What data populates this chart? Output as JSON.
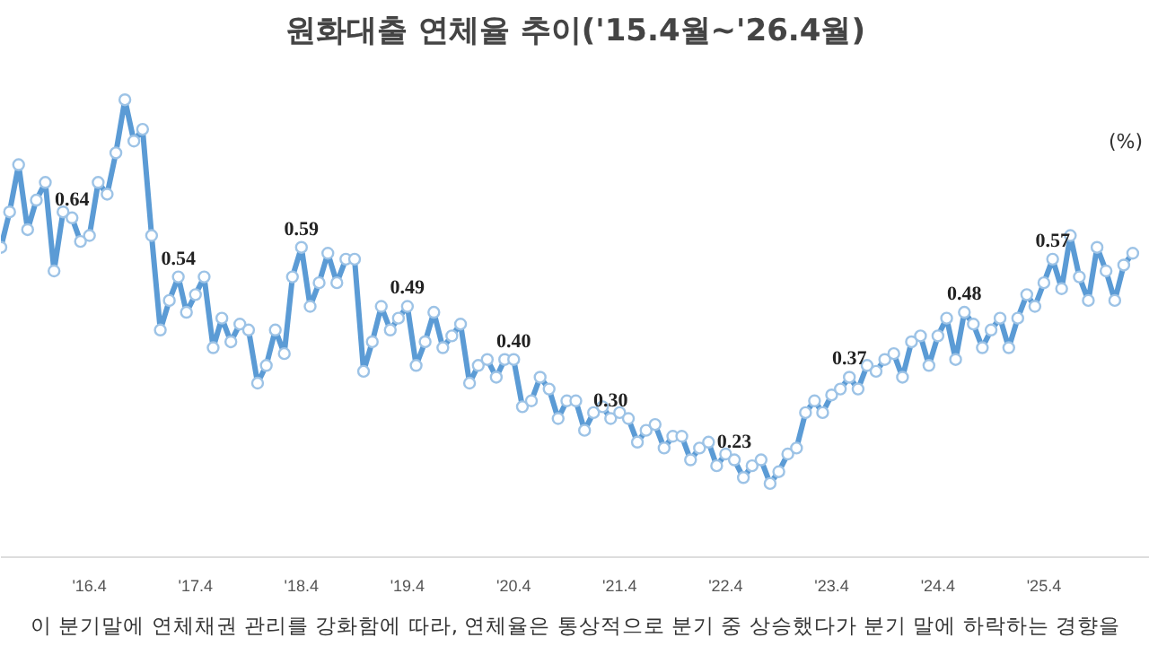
{
  "chart_data": {
    "type": "line",
    "title": "원화대출 연체율 추이('15.4월~'26.4월)",
    "ylabel": "(%)",
    "annotations": [
      "이 분기말에 연체채권 관리를 강화함에 따라, 연체율은 통상적으로 분기 중 상승했다가 분기 말에 하락하는 경향을"
    ],
    "x": [
      "2015-06",
      "2015-07",
      "2015-08",
      "2015-09",
      "2015-10",
      "2015-11",
      "2015-12",
      "2016-01",
      "2016-02",
      "2016-03",
      "2016-04",
      "2016-05",
      "2016-06",
      "2016-07",
      "2016-08",
      "2016-09",
      "2016-10",
      "2016-11",
      "2016-12",
      "2017-01",
      "2017-02",
      "2017-03",
      "2017-04",
      "2017-05",
      "2017-06",
      "2017-07",
      "2017-08",
      "2017-09",
      "2017-10",
      "2017-11",
      "2017-12",
      "2018-01",
      "2018-02",
      "2018-03",
      "2018-04",
      "2018-05",
      "2018-06",
      "2018-07",
      "2018-08",
      "2018-09",
      "2018-10",
      "2018-11",
      "2018-12",
      "2019-01",
      "2019-02",
      "2019-03",
      "2019-04",
      "2019-05",
      "2019-06",
      "2019-07",
      "2019-08",
      "2019-09",
      "2019-10",
      "2019-11",
      "2019-12",
      "2020-01",
      "2020-02",
      "2020-03",
      "2020-04",
      "2020-05",
      "2020-06",
      "2020-07",
      "2020-08",
      "2020-09",
      "2020-10",
      "2020-11",
      "2020-12",
      "2021-01",
      "2021-02",
      "2021-03",
      "2021-04",
      "2021-05",
      "2021-06",
      "2021-07",
      "2021-08",
      "2021-09",
      "2021-10",
      "2021-11",
      "2021-12",
      "2022-01",
      "2022-02",
      "2022-03",
      "2022-04",
      "2022-05",
      "2022-06",
      "2022-07",
      "2022-08",
      "2022-09",
      "2022-10",
      "2022-11",
      "2022-12",
      "2023-01",
      "2023-02",
      "2023-03",
      "2023-04",
      "2023-05",
      "2023-06",
      "2023-07",
      "2023-08",
      "2023-09",
      "2023-10",
      "2023-11",
      "2023-12",
      "2024-01",
      "2024-02",
      "2024-03",
      "2024-04",
      "2024-05",
      "2024-06",
      "2024-07",
      "2024-08",
      "2024-09",
      "2024-10",
      "2024-11",
      "2024-12",
      "2025-01",
      "2025-02",
      "2025-03",
      "2025-04",
      "2025-05",
      "2025-06",
      "2025-07",
      "2025-08",
      "2025-09",
      "2025-10",
      "2025-11",
      "2025-12",
      "2026-01",
      "2026-02"
    ],
    "series": [
      {
        "color": "#5b9bd5",
        "values": [
          0.59,
          0.65,
          0.73,
          0.62,
          0.67,
          0.7,
          0.55,
          0.65,
          0.64,
          0.6,
          0.61,
          0.7,
          0.68,
          0.75,
          0.84,
          0.77,
          0.79,
          0.61,
          0.45,
          0.5,
          0.54,
          0.48,
          0.51,
          0.54,
          0.42,
          0.47,
          0.43,
          0.46,
          0.45,
          0.36,
          0.39,
          0.45,
          0.41,
          0.54,
          0.59,
          0.49,
          0.53,
          0.58,
          0.53,
          0.57,
          0.57,
          0.38,
          0.43,
          0.49,
          0.45,
          0.47,
          0.49,
          0.39,
          0.43,
          0.48,
          0.42,
          0.44,
          0.46,
          0.36,
          0.39,
          0.4,
          0.37,
          0.4,
          0.4,
          0.32,
          0.33,
          0.37,
          0.35,
          0.3,
          0.33,
          0.33,
          0.28,
          0.31,
          0.32,
          0.3,
          0.31,
          0.3,
          0.26,
          0.28,
          0.29,
          0.25,
          0.27,
          0.27,
          0.23,
          0.25,
          0.26,
          0.22,
          0.24,
          0.23,
          0.2,
          0.22,
          0.23,
          0.19,
          0.21,
          0.24,
          0.25,
          0.31,
          0.33,
          0.31,
          0.34,
          0.35,
          0.37,
          0.35,
          0.39,
          0.38,
          0.4,
          0.41,
          0.37,
          0.43,
          0.44,
          0.39,
          0.44,
          0.47,
          0.4,
          0.48,
          0.46,
          0.42,
          0.45,
          0.47,
          0.42,
          0.47,
          0.51,
          0.49,
          0.53,
          0.57,
          0.52,
          0.61,
          0.54,
          0.5,
          0.59,
          0.55,
          0.5,
          0.56,
          0.58
        ],
        "value_labels": [
          null,
          null,
          null,
          null,
          null,
          null,
          null,
          null,
          "0.64",
          null,
          null,
          null,
          null,
          null,
          null,
          null,
          null,
          null,
          null,
          null,
          "0.54",
          null,
          null,
          null,
          null,
          null,
          null,
          null,
          null,
          null,
          null,
          null,
          null,
          null,
          "0.59",
          null,
          null,
          null,
          null,
          null,
          null,
          null,
          null,
          null,
          null,
          null,
          "0.49",
          null,
          null,
          null,
          null,
          null,
          null,
          null,
          null,
          null,
          null,
          null,
          "0.40",
          null,
          null,
          null,
          null,
          null,
          null,
          null,
          null,
          null,
          null,
          "0.30",
          null,
          null,
          null,
          null,
          null,
          null,
          null,
          null,
          null,
          null,
          null,
          null,
          null,
          "0.23",
          null,
          null,
          null,
          null,
          null,
          null,
          null,
          null,
          null,
          null,
          null,
          null,
          "0.37",
          null,
          null,
          null,
          null,
          null,
          null,
          null,
          null,
          null,
          null,
          null,
          null,
          "0.48",
          null,
          null,
          null,
          null,
          null,
          null,
          null,
          null,
          null,
          "0.57",
          null,
          null,
          null,
          null,
          null,
          null,
          null,
          null,
          null
        ]
      }
    ],
    "xlim": [
      "2015-06",
      "2026-04"
    ],
    "xticks": [
      {
        "value": "2016-04",
        "label": "'16.4"
      },
      {
        "value": "2017-04",
        "label": "'17.4"
      },
      {
        "value": "2018-04",
        "label": "'18.4"
      },
      {
        "value": "2019-04",
        "label": "'19.4"
      },
      {
        "value": "2020-04",
        "label": "'20.4"
      },
      {
        "value": "2021-04",
        "label": "'21.4"
      },
      {
        "value": "2022-04",
        "label": "'22.4"
      },
      {
        "value": "2023-04",
        "label": "'23.4"
      },
      {
        "value": "2024-04",
        "label": "'24.4"
      },
      {
        "value": "2025-04",
        "label": "'25.4"
      }
    ],
    "tick_labels": "x",
    "grid": false,
    "marker": "circle",
    "line_style": "solid"
  }
}
